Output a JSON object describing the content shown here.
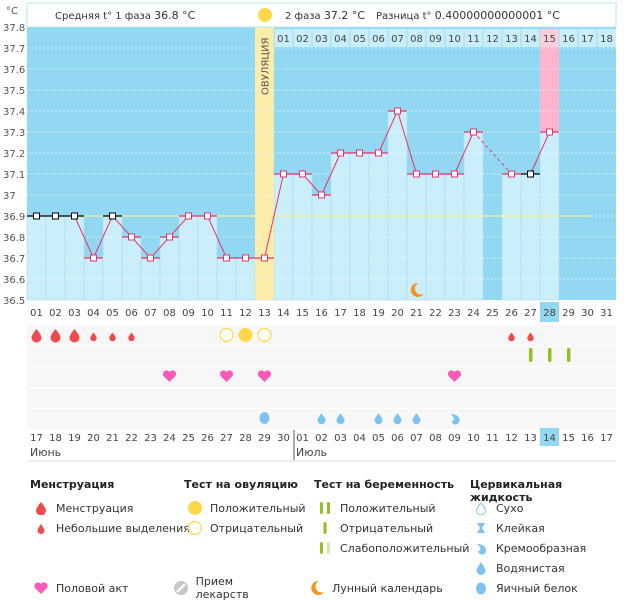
{
  "header": {
    "unit": "°C",
    "phase1_label": "Средняя t° 1 фаза",
    "phase1_value": "36.8 °C",
    "phase2_label": "2 фаза",
    "phase2_value": "37.2 °C",
    "diff_label": "Разница t°",
    "diff_value": "0.40000000000001 °C",
    "ovulation_label": "ОВУЛЯЦИЯ"
  },
  "chart_data": {
    "type": "line",
    "title": "",
    "ylabel": "°C",
    "ylim": [
      36.5,
      37.8
    ],
    "yticks": [
      "37.8",
      "37.7",
      "37.6",
      "37.5",
      "37.4",
      "37.3",
      "37.2",
      "37.1",
      "37",
      "36.9",
      "36.8",
      "36.7",
      "36.6",
      "36.5"
    ],
    "cycle_days": [
      "01",
      "02",
      "03",
      "04",
      "05",
      "06",
      "07",
      "08",
      "09",
      "10",
      "11",
      "12",
      "13",
      "14",
      "15",
      "16",
      "17",
      "18",
      "19",
      "20",
      "21",
      "22",
      "23",
      "24",
      "25",
      "26",
      "27",
      "28",
      "29",
      "30",
      "31"
    ],
    "phase2_days": [
      "01",
      "02",
      "03",
      "04",
      "05",
      "06",
      "07",
      "08",
      "09",
      "10",
      "11",
      "12",
      "13",
      "14",
      "15",
      "16",
      "17",
      "18"
    ],
    "temperatures": [
      36.9,
      36.9,
      36.9,
      36.7,
      36.9,
      36.8,
      36.7,
      36.8,
      36.9,
      36.9,
      36.7,
      36.7,
      36.7,
      37.1,
      37.1,
      37.0,
      37.2,
      37.2,
      37.2,
      37.4,
      37.1,
      37.1,
      37.1,
      37.3,
      null,
      37.1,
      37.1,
      37.3,
      null,
      null,
      null
    ],
    "excluded_points": [
      1,
      2,
      3,
      5,
      27
    ],
    "coverline": 36.9,
    "ovulation_day": 13,
    "highlight_phase2_day": 15,
    "today_cycle_day": 28,
    "moon_day": 21,
    "calendar_dates": [
      "17",
      "18",
      "19",
      "20",
      "21",
      "22",
      "23",
      "24",
      "25",
      "26",
      "27",
      "28",
      "29",
      "30",
      "01",
      "02",
      "03",
      "04",
      "05",
      "06",
      "07",
      "08",
      "09",
      "10",
      "11",
      "12",
      "13",
      "14",
      "15",
      "16",
      "17"
    ],
    "weekend_indices": [
      3,
      4,
      10,
      11,
      17,
      18,
      24,
      25
    ],
    "today_date_index": 27,
    "months": [
      {
        "label": "Июнь",
        "start_index": 0
      },
      {
        "label": "Июль",
        "start_index": 14
      }
    ],
    "menstruation": {
      "heavy": [
        1,
        2,
        3
      ],
      "light": [
        4,
        5,
        6,
        26,
        27
      ]
    },
    "ovulation_test": {
      "positive": [
        12
      ],
      "negative": [
        11,
        13
      ]
    },
    "pregnancy_test": {
      "negative": [
        27,
        28,
        29
      ]
    },
    "intercourse": [
      8,
      11,
      13,
      23
    ],
    "cervical_fluid": {
      "egg_white": [
        13
      ],
      "watery": [
        16,
        17,
        19,
        20,
        21
      ],
      "creamy": [
        23
      ]
    }
  },
  "legend": {
    "menstruation": {
      "title": "Менструация",
      "items": [
        "Менструация",
        "Небольшие выделения"
      ]
    },
    "ovulation_test": {
      "title": "Тест на овуляцию",
      "items": [
        "Положительный",
        "Отрицательный"
      ]
    },
    "pregnancy_test": {
      "title": "Тест на беременность",
      "items": [
        "Положительный",
        "Отрицательный",
        "Слабоположительный"
      ]
    },
    "cervical": {
      "title": "Цервикальная жидкость",
      "items": [
        "Сухо",
        "Клейкая",
        "Кремообразная",
        "Водянистая",
        "Яичный белок"
      ]
    },
    "other": [
      "Половой акт",
      "Прием лекарств",
      "Лунный календарь"
    ]
  },
  "colors": {
    "bg_blue": "#93d8f2",
    "bar_light": "#cbeefb",
    "ovulation": "#fcecaa",
    "highlight": "#ffb6cc",
    "line": "#e8336a",
    "green": "#94c11f",
    "blood": "#f04a4e",
    "heart": "#ff5ab8",
    "drop_blue": "#7cc4ef",
    "sun": "#ffd84a",
    "moon": "#f7941d"
  }
}
